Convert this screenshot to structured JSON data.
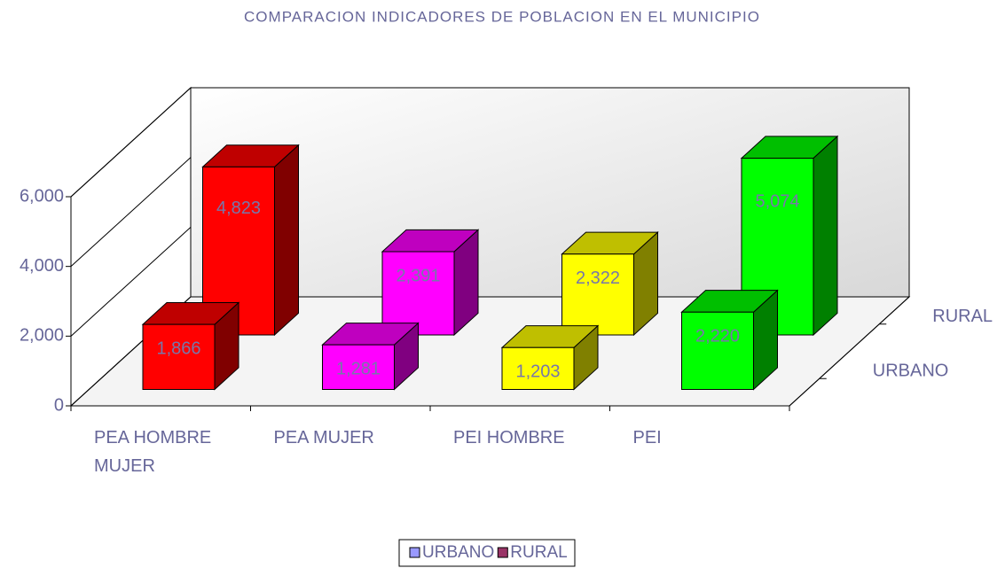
{
  "chart_data": {
    "type": "bar3d",
    "title": "COMPARACION INDICADORES DE POBLACION EN EL MUNICIPIO",
    "categories": [
      "PEA HOMBRE MUJER",
      "PEA MUJER",
      "PEI HOMBRE",
      "PEI"
    ],
    "category_colors": [
      "#ff0000",
      "#ff00ff",
      "#ffff00",
      "#00ff00"
    ],
    "series": [
      {
        "name": "URBANO",
        "color": "#9999ff",
        "values": [
          1866,
          1281,
          1203,
          2220
        ],
        "value_labels": [
          "1,866",
          "1,281",
          "1,203",
          "2,220"
        ]
      },
      {
        "name": "RURAL",
        "color": "#993366",
        "values": [
          4823,
          2391,
          2322,
          5074
        ],
        "value_labels": [
          "4,823",
          "2,391",
          "2,322",
          "5,074"
        ]
      }
    ],
    "ylim": [
      0,
      6000
    ],
    "yticks": [
      0,
      {
        "value": 2000,
        "label": "2,000"
      },
      {
        "value": 4000,
        "label": "4,000"
      },
      {
        "value": 6000,
        "label": "6,000"
      }
    ],
    "grid": true
  }
}
